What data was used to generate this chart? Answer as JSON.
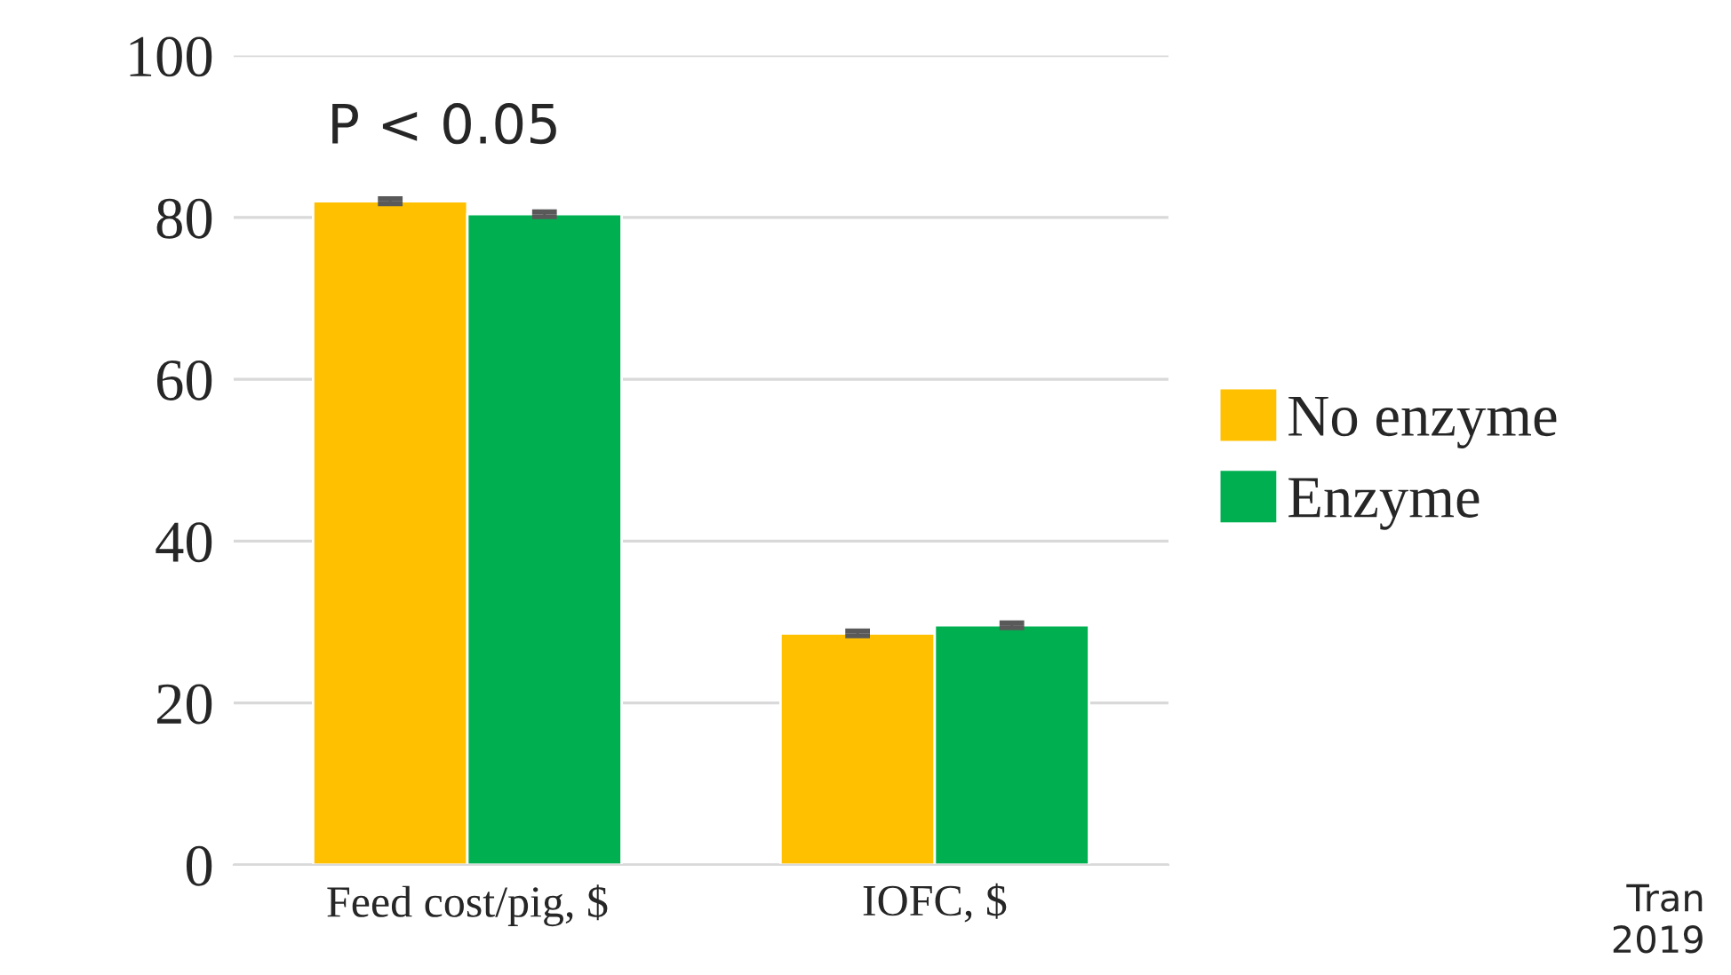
{
  "chart_data": {
    "type": "bar",
    "categories": [
      "Feed cost/pig, $",
      "IOFC, $"
    ],
    "series": [
      {
        "name": "No enzyme",
        "color": "#ffc000",
        "values": [
          82.0,
          28.6
        ],
        "errors": [
          0.3,
          0.3
        ]
      },
      {
        "name": "Enzyme",
        "color": "#00b050",
        "values": [
          80.4,
          29.6
        ],
        "errors": [
          0.3,
          0.3
        ]
      }
    ],
    "ylim": [
      0,
      100
    ],
    "yticks": [
      0,
      20,
      40,
      60,
      80,
      100
    ],
    "grid": "y",
    "legend": "right",
    "annotations": [
      "P < 0.05",
      "Tran\n2019"
    ]
  }
}
